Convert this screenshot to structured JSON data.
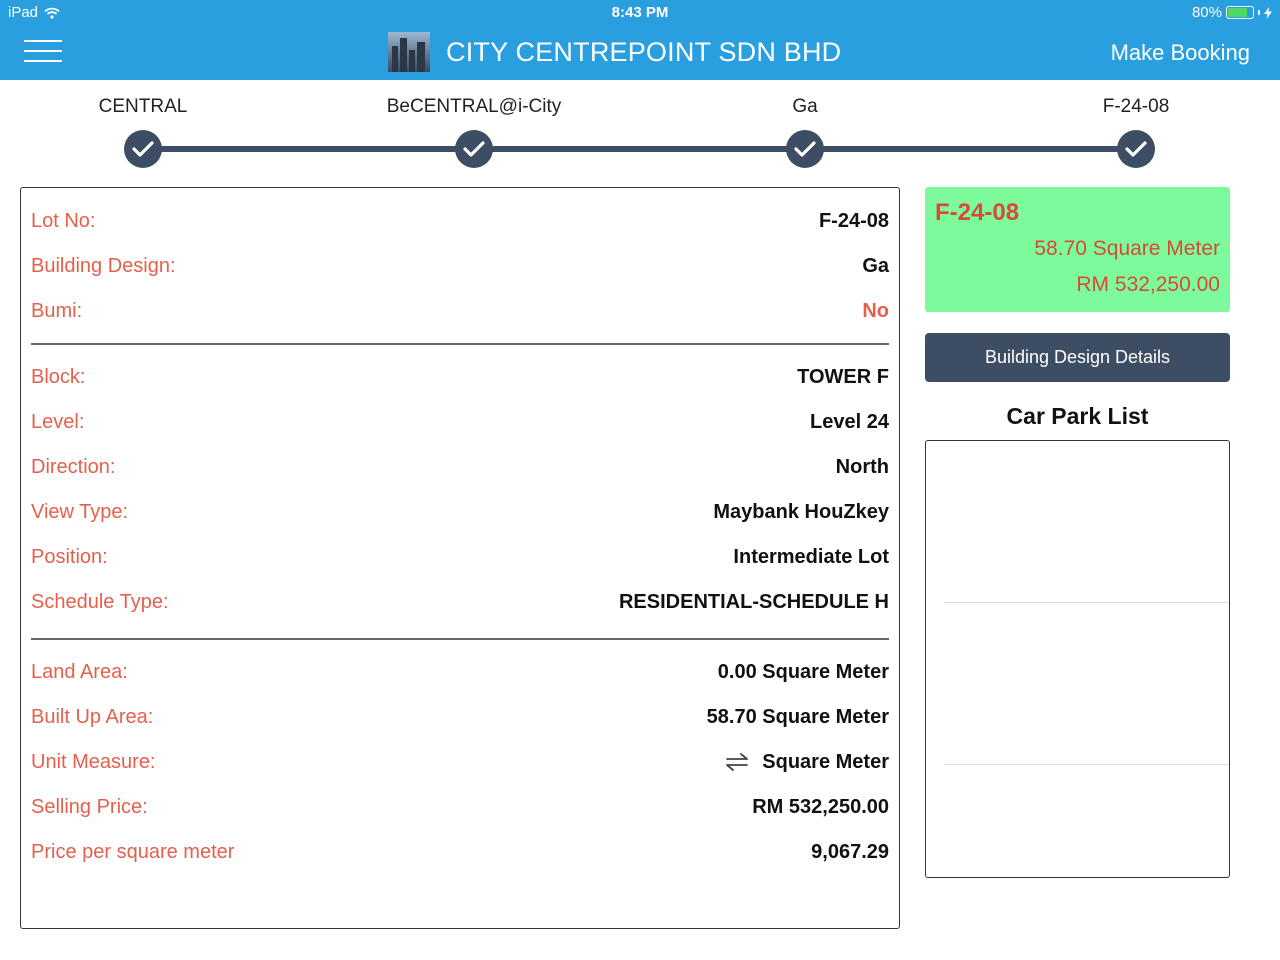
{
  "status": {
    "carrier": "iPad",
    "time": "8:43 PM",
    "battery_percent": "80%",
    "battery_level": 0.8,
    "battery_color": "#4cd964"
  },
  "header": {
    "title": "CITY CENTREPOINT SDN BHD",
    "action": "Make Booking",
    "bar_color": "#2a9fe0"
  },
  "steps": [
    {
      "label": "CENTRAL",
      "done": true
    },
    {
      "label": "BeCENTRAL@i-City",
      "done": true
    },
    {
      "label": "Ga",
      "done": true
    },
    {
      "label": "F-24-08",
      "done": true
    }
  ],
  "details": {
    "lot_no": {
      "label": "Lot No:",
      "value": "F-24-08"
    },
    "building_design": {
      "label": "Building Design:",
      "value": "Ga"
    },
    "bumi": {
      "label": "Bumi:",
      "value": "No"
    },
    "block": {
      "label": "Block:",
      "value": "TOWER F"
    },
    "level": {
      "label": "Level:",
      "value": "Level 24"
    },
    "direction": {
      "label": "Direction:",
      "value": "North"
    },
    "view_type": {
      "label": "View Type:",
      "value": "Maybank HouZkey"
    },
    "position": {
      "label": "Position:",
      "value": "Intermediate Lot"
    },
    "schedule_type": {
      "label": "Schedule Type:",
      "value": "RESIDENTIAL-SCHEDULE H"
    },
    "land_area": {
      "label": "Land Area:",
      "value": "0.00 Square Meter"
    },
    "built_up_area": {
      "label": "Built Up Area:",
      "value": "58.70 Square Meter"
    },
    "unit_measure": {
      "label": "Unit Measure:",
      "value": "Square Meter"
    },
    "selling_price": {
      "label": "Selling Price:",
      "value": "RM 532,250.00"
    },
    "price_per_sqm": {
      "label": "Price per square meter",
      "value": "9,067.29"
    }
  },
  "summary": {
    "lot": "F-24-08",
    "area": "58.70 Square Meter",
    "price": "RM 532,250.00",
    "bg_color": "#7dfb9c",
    "text_color": "#d64a36"
  },
  "sidebar": {
    "button": "Building Design Details",
    "car_park_title": "Car Park List"
  },
  "colors": {
    "label": "#e5604c",
    "dark": "#3d4d63"
  }
}
